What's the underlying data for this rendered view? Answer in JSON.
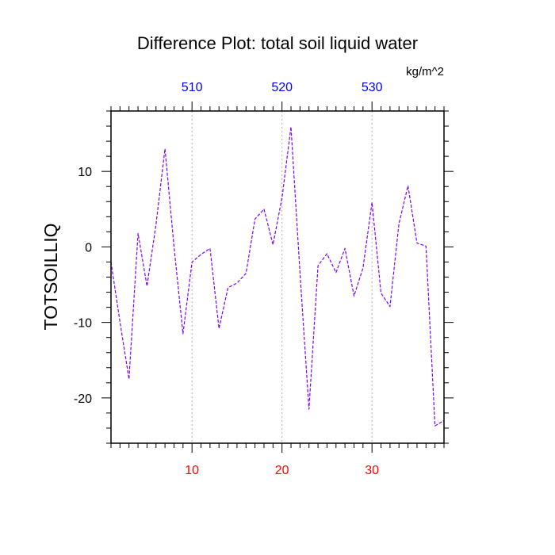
{
  "chart_data": {
    "type": "line",
    "title": "Difference Plot: total soil liquid water",
    "units": "kg/m^2",
    "ylabel": "TOTSOILLIQ",
    "xlabel": "",
    "xlim": [
      1,
      38
    ],
    "ylim": [
      -26,
      18
    ],
    "x_major_ticks": [
      10,
      20,
      30
    ],
    "x_tick_labels": [
      "10",
      "20",
      "30"
    ],
    "x_tick_label_color": "#ff0000",
    "top_axis_tick_labels": [
      "510",
      "520",
      "530"
    ],
    "top_axis_tick_label_color": "#0000ff",
    "y_major_ticks": [
      -20,
      -10,
      0,
      10
    ],
    "y_tick_labels": [
      "-20",
      "-10",
      "0",
      "10"
    ],
    "grid": "vertical dotted at major x ticks",
    "series": [
      {
        "color": "#7f00ff",
        "dash": "dashed",
        "x": [
          1,
          2,
          3,
          4,
          5,
          6,
          7,
          8,
          9,
          10,
          11,
          12,
          13,
          14,
          15,
          16,
          17,
          18,
          19,
          20,
          21,
          22,
          23,
          24,
          25,
          26,
          27,
          28,
          29,
          30,
          31,
          32,
          33,
          34,
          35,
          36,
          37,
          38
        ],
        "values": [
          -2,
          -10,
          -17.5,
          1.8,
          -5.2,
          3,
          13,
          0,
          -11.5,
          -2,
          -1,
          -0.2,
          -10.8,
          -5.4,
          -4.8,
          -3.5,
          3.7,
          5,
          0.3,
          6.5,
          15.9,
          -3.5,
          -21.5,
          -2.5,
          -0.9,
          -3.4,
          -0.2,
          -6.5,
          -2.8,
          5.9,
          -6.1,
          -7.9,
          3.1,
          8.1,
          0.5,
          0.1,
          -23.7,
          -23
        ]
      }
    ]
  }
}
